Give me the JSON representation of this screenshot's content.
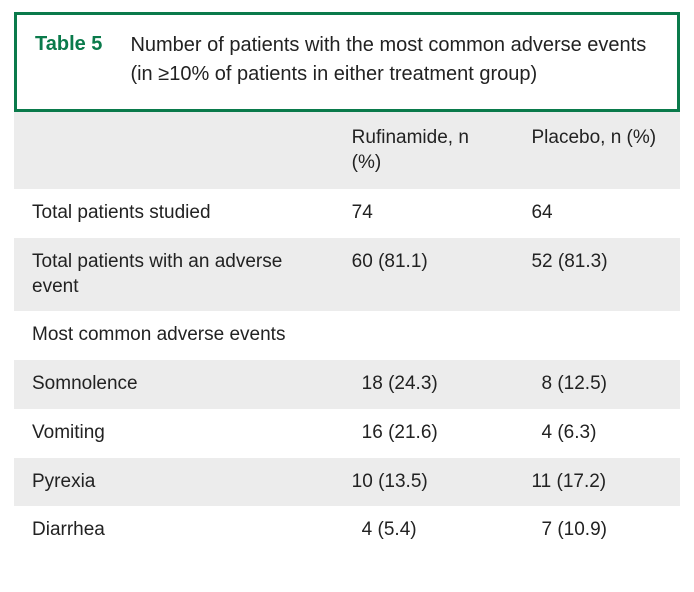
{
  "header": {
    "label": "Table 5",
    "caption": "Number of patients with the most common adverse events (in ≥10% of patients in either treatment group)"
  },
  "table": {
    "columns": [
      "",
      "Rufinamide, n (%)",
      "Placebo, n (%)"
    ],
    "rows": [
      {
        "label": "Total patients studied",
        "c1": "74",
        "c2": "64",
        "stripe": false,
        "indent": false
      },
      {
        "label": "Total patients with an adverse event",
        "c1": "60 (81.1)",
        "c2": "52 (81.3)",
        "stripe": true,
        "indent": false
      },
      {
        "label": "Most common adverse events",
        "c1": "",
        "c2": "",
        "stripe": false,
        "indent": false
      },
      {
        "label": "Somnolence",
        "c1": "18 (24.3)",
        "c2": "8 (12.5)",
        "stripe": true,
        "indent": true
      },
      {
        "label": "Vomiting",
        "c1": "16 (21.6)",
        "c2": "4 (6.3)",
        "stripe": false,
        "indent": true
      },
      {
        "label": "Pyrexia",
        "c1": "10 (13.5)",
        "c2": "11 (17.2)",
        "stripe": true,
        "indent": false
      },
      {
        "label": "Diarrhea",
        "c1": "4 (5.4)",
        "c2": "7 (10.9)",
        "stripe": false,
        "indent": true
      }
    ]
  },
  "colors": {
    "accent": "#0a7a4b",
    "stripe_bg": "#ececec",
    "text": "#222222",
    "background": "#ffffff"
  }
}
